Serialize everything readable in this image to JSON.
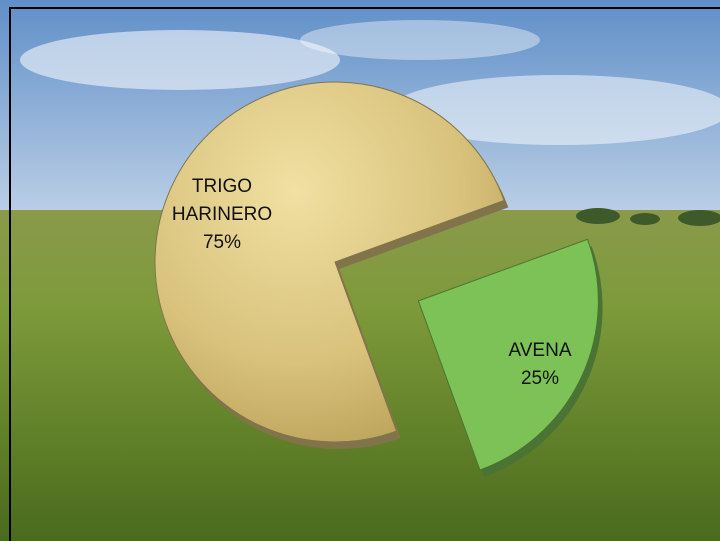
{
  "chart_data": {
    "type": "pie",
    "categories": [
      "TRIGO HARINERO",
      "AVENA"
    ],
    "values": [
      75,
      25
    ],
    "value_labels": [
      "75%",
      "25%"
    ],
    "colors": [
      "#d8c27c",
      "#7cc257"
    ],
    "exploded": [
      false,
      true
    ]
  }
}
